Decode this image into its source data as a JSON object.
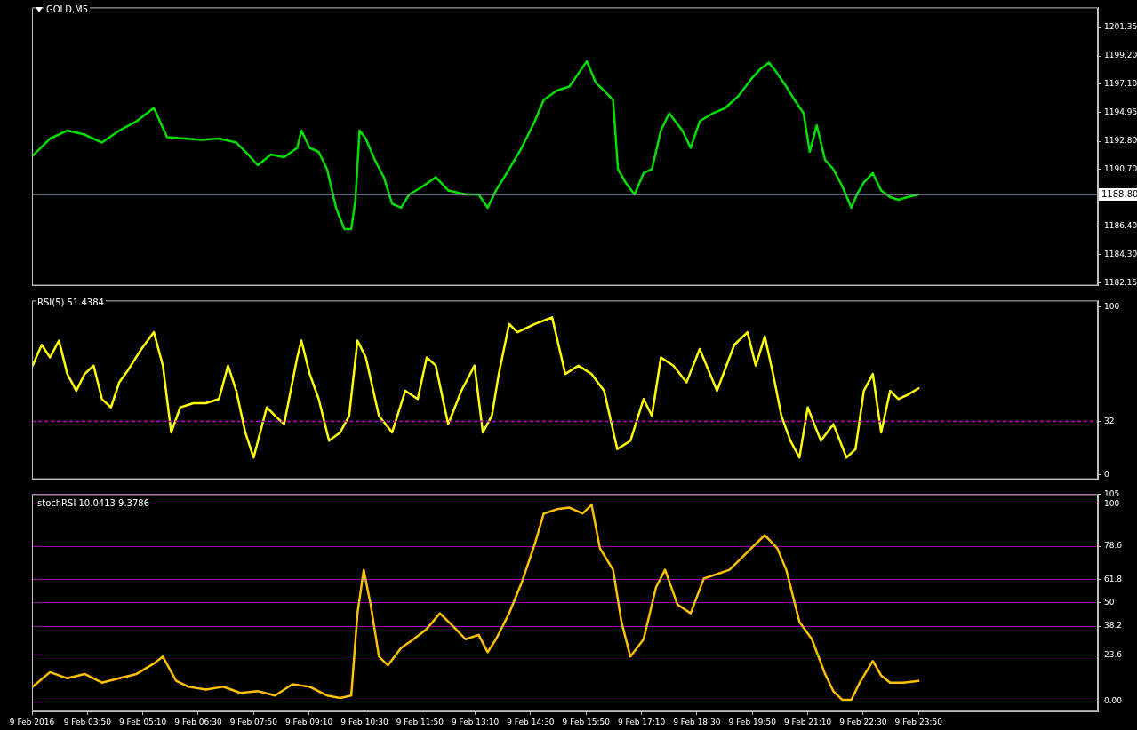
{
  "chart_data": [
    {
      "type": "line",
      "title": "GOLD,M5",
      "marker": "none",
      "tick_labels": "y",
      "xlim": [
        "2016-02-09T02:30",
        "2016-02-10T04:09"
      ],
      "ylim": [
        1181.95,
        1202.85
      ],
      "yticks": [
        1182.15,
        {
          "value": 1184.3,
          "label": "1184.30"
        },
        {
          "value": 1186.4,
          "label": "1186.40"
        },
        {
          "value": 1190.7,
          "label": "1190.70"
        },
        {
          "value": 1192.8,
          "label": "1192.80"
        },
        1194.95,
        {
          "value": 1197.1,
          "label": "1197.10"
        },
        {
          "value": 1199.2,
          "label": "1199.20"
        },
        1201.35
      ],
      "ref_lines": [
        {
          "axis": "y",
          "value": 1188.8,
          "label": "1188.80",
          "color": "#8890a0"
        }
      ],
      "series": [
        {
          "color": "#00e000",
          "x": [
            "2016-02-09T02:31",
            "2016-02-09T02:56",
            "2016-02-09T03:21",
            "2016-02-09T03:46",
            "2016-02-09T04:11",
            "2016-02-09T04:36",
            "2016-02-09T05:01",
            "2016-02-09T05:26",
            "2016-02-09T05:45",
            "2016-02-09T06:10",
            "2016-02-09T06:35",
            "2016-02-09T07:00",
            "2016-02-09T07:25",
            "2016-02-09T07:44",
            "2016-02-09T07:56",
            "2016-02-09T08:15",
            "2016-02-09T08:34",
            "2016-02-09T08:53",
            "2016-02-09T08:59",
            "2016-02-09T09:11",
            "2016-02-09T09:24",
            "2016-02-09T09:36",
            "2016-02-09T09:49",
            "2016-02-09T10:01",
            "2016-02-09T10:11",
            "2016-02-09T10:17",
            "2016-02-09T10:23",
            "2016-02-09T10:32",
            "2016-02-09T10:45",
            "2016-02-09T10:58",
            "2016-02-09T11:10",
            "2016-02-09T11:23",
            "2016-02-09T11:35",
            "2016-02-09T11:54",
            "2016-02-09T12:13",
            "2016-02-09T12:31",
            "2016-02-09T12:56",
            "2016-02-09T13:15",
            "2016-02-09T13:28",
            "2016-02-09T13:40",
            "2016-02-09T13:59",
            "2016-02-09T14:17",
            "2016-02-09T14:36",
            "2016-02-09T14:49",
            "2016-02-09T15:08",
            "2016-02-09T15:26",
            "2016-02-09T15:39",
            "2016-02-09T15:51",
            "2016-02-09T16:04",
            "2016-02-09T16:16",
            "2016-02-09T16:29",
            "2016-02-09T16:36",
            "2016-02-09T16:47",
            "2016-02-09T17:00",
            "2016-02-09T17:13",
            "2016-02-09T17:25",
            "2016-02-09T17:38",
            "2016-02-09T17:50",
            "2016-02-09T18:09",
            "2016-02-09T18:21",
            "2016-02-09T18:34",
            "2016-02-09T18:53",
            "2016-02-09T19:11",
            "2016-02-09T19:30",
            "2016-02-09T19:49",
            "2016-02-09T20:01",
            "2016-02-09T20:14",
            "2016-02-09T20:26",
            "2016-02-09T20:39",
            "2016-02-09T20:51",
            "2016-02-09T21:04",
            "2016-02-09T21:13",
            "2016-02-09T21:23",
            "2016-02-09T21:35",
            "2016-02-09T21:47",
            "2016-02-09T22:00",
            "2016-02-09T22:13",
            "2016-02-09T22:21",
            "2016-02-09T22:31",
            "2016-02-09T22:44",
            "2016-02-09T22:56",
            "2016-02-09T23:09",
            "2016-02-09T23:21",
            "2016-02-09T23:34",
            "2016-02-09T23:50"
          ],
          "values": [
            1191.7,
            1193.0,
            1193.6,
            1193.3,
            1192.7,
            1193.6,
            1194.3,
            1195.3,
            1193.1,
            1193.0,
            1192.9,
            1193.0,
            1192.7,
            1191.7,
            1191.0,
            1191.8,
            1191.6,
            1192.3,
            1193.6,
            1192.3,
            1192.0,
            1190.7,
            1187.8,
            1186.2,
            1186.2,
            1188.4,
            1193.6,
            1193.0,
            1191.4,
            1190.1,
            1188.1,
            1187.8,
            1188.8,
            1189.4,
            1190.1,
            1189.1,
            1188.8,
            1188.8,
            1187.8,
            1189.1,
            1190.7,
            1192.3,
            1194.3,
            1195.9,
            1196.6,
            1196.9,
            1197.9,
            1198.8,
            1197.2,
            1196.6,
            1195.9,
            1190.7,
            1189.7,
            1188.8,
            1190.4,
            1190.7,
            1193.6,
            1194.9,
            1193.6,
            1192.3,
            1194.3,
            1194.9,
            1195.3,
            1196.2,
            1197.5,
            1198.2,
            1198.7,
            1197.9,
            1196.9,
            1195.9,
            1194.9,
            1192.0,
            1194.0,
            1191.4,
            1190.7,
            1189.4,
            1187.8,
            1188.8,
            1189.7,
            1190.4,
            1189.1,
            1188.6,
            1188.4,
            1188.6,
            1188.8
          ]
        }
      ]
    },
    {
      "type": "line",
      "title": "RSI(5) 51.4384",
      "marker": "none",
      "tick_labels": "y",
      "xlim": [
        "2016-02-09T02:30",
        "2016-02-10T04:09"
      ],
      "ylim": [
        -2.5,
        104
      ],
      "yticks": [
        0,
        32,
        100
      ],
      "ref_lines": [
        {
          "axis": "y",
          "value": 32,
          "color": "#c000c0",
          "line_style": "dashed"
        }
      ],
      "series": [
        {
          "color": "#ffff00",
          "x": [
            "2016-02-09T02:31",
            "2016-02-09T02:44",
            "2016-02-09T02:56",
            "2016-02-09T03:09",
            "2016-02-09T03:21",
            "2016-02-09T03:34",
            "2016-02-09T03:46",
            "2016-02-09T03:59",
            "2016-02-09T04:11",
            "2016-02-09T04:24",
            "2016-02-09T04:36",
            "2016-02-09T04:49",
            "2016-02-09T05:08",
            "2016-02-09T05:26",
            "2016-02-09T05:39",
            "2016-02-09T05:51",
            "2016-02-09T06:04",
            "2016-02-09T06:23",
            "2016-02-09T06:41",
            "2016-02-09T07:00",
            "2016-02-09T07:13",
            "2016-02-09T07:25",
            "2016-02-09T07:38",
            "2016-02-09T07:50",
            "2016-02-09T08:09",
            "2016-02-09T08:21",
            "2016-02-09T08:34",
            "2016-02-09T08:53",
            "2016-02-09T08:59",
            "2016-02-09T09:11",
            "2016-02-09T09:24",
            "2016-02-09T09:39",
            "2016-02-09T09:55",
            "2016-02-09T10:08",
            "2016-02-09T10:20",
            "2016-02-09T10:32",
            "2016-02-09T10:51",
            "2016-02-09T11:10",
            "2016-02-09T11:29",
            "2016-02-09T11:47",
            "2016-02-09T12:00",
            "2016-02-09T12:13",
            "2016-02-09T12:31",
            "2016-02-09T12:50",
            "2016-02-09T13:09",
            "2016-02-09T13:21",
            "2016-02-09T13:34",
            "2016-02-09T13:44",
            "2016-02-09T13:59",
            "2016-02-09T14:11",
            "2016-02-09T14:36",
            "2016-02-09T15:01",
            "2016-02-09T15:20",
            "2016-02-09T15:39",
            "2016-02-09T15:58",
            "2016-02-09T16:16",
            "2016-02-09T16:35",
            "2016-02-09T16:54",
            "2016-02-09T17:13",
            "2016-02-09T17:25",
            "2016-02-09T17:38",
            "2016-02-09T17:56",
            "2016-02-09T18:15",
            "2016-02-09T18:34",
            "2016-02-09T18:59",
            "2016-02-09T19:24",
            "2016-02-09T19:43",
            "2016-02-09T19:55",
            "2016-02-09T20:08",
            "2016-02-09T20:20",
            "2016-02-09T20:32",
            "2016-02-09T20:45",
            "2016-02-09T20:58",
            "2016-02-09T21:10",
            "2016-02-09T21:29",
            "2016-02-09T21:47",
            "2016-02-09T22:06",
            "2016-02-09T22:19",
            "2016-02-09T22:31",
            "2016-02-09T22:44",
            "2016-02-09T22:56",
            "2016-02-09T23:09",
            "2016-02-09T23:21",
            "2016-02-09T23:34",
            "2016-02-09T23:50"
          ],
          "values": [
            65.2,
            77.6,
            70.1,
            80.1,
            60.2,
            50.2,
            60.2,
            65.2,
            45.3,
            40.3,
            55.2,
            62.7,
            75.1,
            85.1,
            65.2,
            25.4,
            40.3,
            42.8,
            42.8,
            45.3,
            65.2,
            50.2,
            25.4,
            10.4,
            40.3,
            35.3,
            30.3,
            70.1,
            80.1,
            60.2,
            45.3,
            20.4,
            25.4,
            35.3,
            80.1,
            70.1,
            35.3,
            25.4,
            50.2,
            45.3,
            70.1,
            65.2,
            30.3,
            50.2,
            65.2,
            25.4,
            35.3,
            60.2,
            90.0,
            85.1,
            90.0,
            94.0,
            60.2,
            65.2,
            60.2,
            50.2,
            15.4,
            20.4,
            45.3,
            35.3,
            70.1,
            65.2,
            55.2,
            75.1,
            50.2,
            77.6,
            85.1,
            65.2,
            82.6,
            60.2,
            35.3,
            20.4,
            10.4,
            40.3,
            20.4,
            30.3,
            10.4,
            15.4,
            50.2,
            60.2,
            25.4,
            50.2,
            45.3,
            47.8,
            51.7
          ]
        }
      ]
    },
    {
      "type": "line",
      "title": "stochRSI 10.0413 9.3786",
      "marker": "none",
      "grid": "y",
      "xlim": [
        "2016-02-09T02:30",
        "2016-02-10T04:09"
      ],
      "xticks": [
        {
          "value": "2016-02-09T02:30",
          "label": "9 Feb 2016"
        },
        {
          "value": "2016-02-09T03:50",
          "label": "9 Feb 03:50"
        },
        {
          "value": "2016-02-09T05:10",
          "label": "9 Feb 05:10"
        },
        {
          "value": "2016-02-09T06:30",
          "label": "9 Feb 06:30"
        },
        {
          "value": "2016-02-09T07:50",
          "label": "9 Feb 07:50"
        },
        {
          "value": "2016-02-09T09:10",
          "label": "9 Feb 09:10"
        },
        {
          "value": "2016-02-09T10:30",
          "label": "9 Feb 10:30"
        },
        {
          "value": "2016-02-09T11:50",
          "label": "9 Feb 11:50"
        },
        {
          "value": "2016-02-09T13:10",
          "label": "9 Feb 13:10"
        },
        {
          "value": "2016-02-09T14:30",
          "label": "9 Feb 14:30"
        },
        {
          "value": "2016-02-09T15:50",
          "label": "9 Feb 15:50"
        },
        {
          "value": "2016-02-09T17:10",
          "label": "9 Feb 17:10"
        },
        {
          "value": "2016-02-09T18:30",
          "label": "9 Feb 18:30"
        },
        {
          "value": "2016-02-09T19:50",
          "label": "9 Feb 19:50"
        },
        {
          "value": "2016-02-09T21:10",
          "label": "9 Feb 21:10"
        },
        {
          "value": "2016-02-09T22:30",
          "label": "9 Feb 22:30"
        },
        {
          "value": "2016-02-09T23:50",
          "label": "9 Feb 23:50"
        }
      ],
      "ylim": [
        -5,
        105
      ],
      "yticks": [
        {
          "value": 0,
          "label": "0.00"
        },
        23.6,
        38.2,
        50,
        61.8,
        78.6,
        100,
        105
      ],
      "series": [
        {
          "color": "#ffc000",
          "x": [
            "2016-02-09T02:31",
            "2016-02-09T02:56",
            "2016-02-09T03:21",
            "2016-02-09T03:46",
            "2016-02-09T04:11",
            "2016-02-09T04:36",
            "2016-02-09T05:01",
            "2016-02-09T05:26",
            "2016-02-09T05:39",
            "2016-02-09T05:58",
            "2016-02-09T06:16",
            "2016-02-09T06:41",
            "2016-02-09T07:06",
            "2016-02-09T07:31",
            "2016-02-09T07:56",
            "2016-02-09T08:21",
            "2016-02-09T08:46",
            "2016-02-09T09:11",
            "2016-02-09T09:36",
            "2016-02-09T09:55",
            "2016-02-09T10:11",
            "2016-02-09T10:20",
            "2016-02-09T10:29",
            "2016-02-09T10:39",
            "2016-02-09T10:51",
            "2016-02-09T11:04",
            "2016-02-09T11:23",
            "2016-02-09T11:41",
            "2016-02-09T12:00",
            "2016-02-09T12:19",
            "2016-02-09T12:38",
            "2016-02-09T12:56",
            "2016-02-09T13:15",
            "2016-02-09T13:28",
            "2016-02-09T13:40",
            "2016-02-09T13:59",
            "2016-02-09T14:17",
            "2016-02-09T14:36",
            "2016-02-09T14:49",
            "2016-02-09T15:08",
            "2016-02-09T15:26",
            "2016-02-09T15:45",
            "2016-02-09T15:58",
            "2016-02-09T16:10",
            "2016-02-09T16:29",
            "2016-02-09T16:41",
            "2016-02-09T16:54",
            "2016-02-09T17:13",
            "2016-02-09T17:31",
            "2016-02-09T17:44",
            "2016-02-09T18:02",
            "2016-02-09T18:21",
            "2016-02-09T18:40",
            "2016-02-09T18:59",
            "2016-02-09T19:17",
            "2016-02-09T19:36",
            "2016-02-09T19:55",
            "2016-02-09T20:08",
            "2016-02-09T20:26",
            "2016-02-09T20:39",
            "2016-02-09T20:58",
            "2016-02-09T21:16",
            "2016-02-09T21:35",
            "2016-02-09T21:47",
            "2016-02-09T22:00",
            "2016-02-09T22:13",
            "2016-02-09T22:25",
            "2016-02-09T22:44",
            "2016-02-09T22:56",
            "2016-02-09T23:09",
            "2016-02-09T23:28",
            "2016-02-09T23:50"
          ],
          "values": [
            7.5,
            14.9,
            11.8,
            14.0,
            9.6,
            11.8,
            14.0,
            19.3,
            22.8,
            10.5,
            7.5,
            6.1,
            7.5,
            4.4,
            5.3,
            3.1,
            8.8,
            7.5,
            3.1,
            1.8,
            3.1,
            44.7,
            66.7,
            49.1,
            22.8,
            18.4,
            27.2,
            31.6,
            36.8,
            44.7,
            38.2,
            31.6,
            33.8,
            25.0,
            31.6,
            44.7,
            60.1,
            79.8,
            95.2,
            97.4,
            98.2,
            95.2,
            99.6,
            77.6,
            66.7,
            40.4,
            22.8,
            31.6,
            57.9,
            66.7,
            49.1,
            44.7,
            62.3,
            64.5,
            66.7,
            73.2,
            79.8,
            84.2,
            77.6,
            66.7,
            40.4,
            31.6,
            14.0,
            5.3,
            0.9,
            0.9,
            9.6,
            20.6,
            13.2,
            9.6,
            9.6,
            10.5
          ]
        }
      ]
    }
  ]
}
